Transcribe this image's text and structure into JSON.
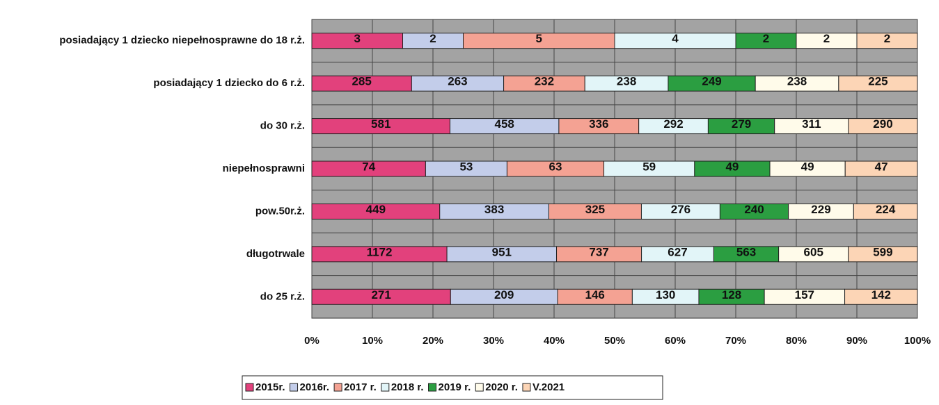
{
  "chart_data": {
    "type": "stacked_bar_100",
    "categories": [
      "posiadający 1 dziecko niepełnosprawne do 18 r.ż.",
      "posiadający 1 dziecko do 6 r.ż.",
      "do 30 r.ż.",
      "niepełnosprawni",
      "pow.50r.ż.",
      "długotrwale",
      "do 25 r.ż."
    ],
    "series": [
      {
        "name": "2015r.",
        "color": "#e2417c",
        "values": [
          3,
          285,
          581,
          74,
          449,
          1172,
          271
        ]
      },
      {
        "name": "2016r.",
        "color": "#c3cdea",
        "values": [
          2,
          263,
          458,
          53,
          383,
          951,
          209
        ]
      },
      {
        "name": "2017 r.",
        "color": "#f4a293",
        "values": [
          5,
          232,
          336,
          63,
          325,
          737,
          146
        ]
      },
      {
        "name": "2018 r.",
        "color": "#e2f5f8",
        "values": [
          4,
          238,
          292,
          59,
          276,
          627,
          130
        ]
      },
      {
        "name": "2019 r.",
        "color": "#2b9e41",
        "values": [
          2,
          249,
          279,
          49,
          240,
          563,
          128
        ]
      },
      {
        "name": "2020 r.",
        "color": "#fffbea",
        "values": [
          2,
          238,
          311,
          49,
          229,
          605,
          157
        ]
      },
      {
        "name": "V.2021",
        "color": "#fcd5b6",
        "values": [
          2,
          225,
          290,
          47,
          224,
          599,
          142
        ]
      }
    ],
    "xlim": [
      0,
      100
    ],
    "xticks": [
      {
        "value": 0,
        "label": "0%"
      },
      {
        "value": 10,
        "label": "10%"
      },
      {
        "value": 20,
        "label": "20%"
      },
      {
        "value": 30,
        "label": "30%"
      },
      {
        "value": 40,
        "label": "40%"
      },
      {
        "value": 50,
        "label": "50%"
      },
      {
        "value": 60,
        "label": "60%"
      },
      {
        "value": 70,
        "label": "70%"
      },
      {
        "value": 80,
        "label": "80%"
      },
      {
        "value": 90,
        "label": "90%"
      },
      {
        "value": 100,
        "label": "100%"
      }
    ],
    "grid": true
  }
}
